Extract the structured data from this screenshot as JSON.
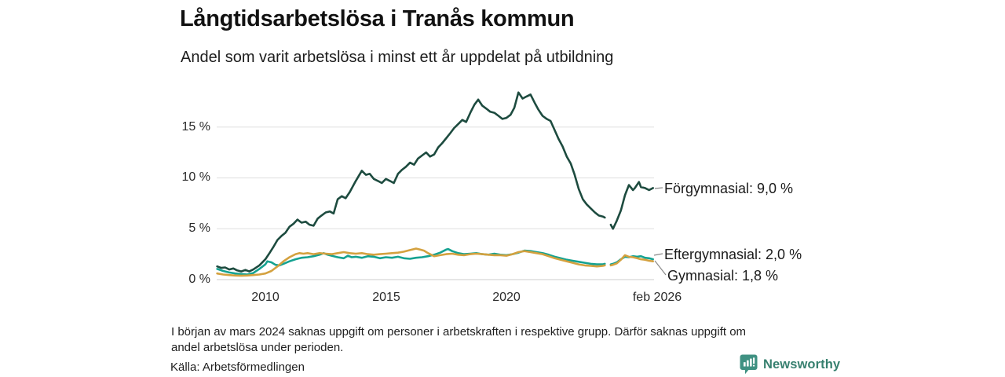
{
  "header": {
    "title": "Långtidsarbetslösa i Tranås kommun",
    "subtitle": "Andel som varit arbetslösa i minst ett år uppdelat på utbildning"
  },
  "chart_data": {
    "type": "line",
    "title": "Långtidsarbetslösa i Tranås kommun",
    "subtitle": "Andel som varit arbetslösa i minst ett år uppdelat på utbildning",
    "unit": "%",
    "x_range": [
      2008.0,
      2026.17
    ],
    "y_range": [
      0,
      18.6
    ],
    "grid": "horizontal",
    "legend_position": "end-of-line-labels",
    "y_ticks": [
      {
        "label": "15 %",
        "value": 15
      },
      {
        "label": "10 %",
        "value": 10
      },
      {
        "label": "5 %",
        "value": 5
      },
      {
        "label": "0 %",
        "value": 0
      }
    ],
    "x_ticks": [
      {
        "label": "2010",
        "year": 2010
      },
      {
        "label": "2015",
        "year": 2015
      },
      {
        "label": "2020",
        "year": 2020
      },
      {
        "label": "feb 2026",
        "year": 2026.08
      }
    ],
    "data_gap": "mars 2024",
    "series": [
      {
        "id": "forgymnasial",
        "name": "Förgymnasial",
        "end_label": "Förgymnasial: 9,0 %",
        "end_value": 9.0,
        "color": "#1d4b3f",
        "points": [
          [
            2008.0,
            1.3
          ],
          [
            2008.17,
            1.15
          ],
          [
            2008.33,
            1.2
          ],
          [
            2008.5,
            1.0
          ],
          [
            2008.67,
            1.1
          ],
          [
            2008.83,
            0.9
          ],
          [
            2009.0,
            0.8
          ],
          [
            2009.17,
            0.95
          ],
          [
            2009.33,
            0.8
          ],
          [
            2009.5,
            1.0
          ],
          [
            2009.75,
            1.4
          ],
          [
            2010.0,
            2.0
          ],
          [
            2010.17,
            2.6
          ],
          [
            2010.33,
            3.2
          ],
          [
            2010.5,
            3.9
          ],
          [
            2010.67,
            4.3
          ],
          [
            2010.83,
            4.6
          ],
          [
            2011.0,
            5.2
          ],
          [
            2011.17,
            5.5
          ],
          [
            2011.33,
            5.9
          ],
          [
            2011.5,
            5.6
          ],
          [
            2011.67,
            5.7
          ],
          [
            2011.83,
            5.4
          ],
          [
            2012.0,
            5.3
          ],
          [
            2012.17,
            6.0
          ],
          [
            2012.33,
            6.3
          ],
          [
            2012.5,
            6.6
          ],
          [
            2012.67,
            6.7
          ],
          [
            2012.83,
            6.5
          ],
          [
            2013.0,
            7.9
          ],
          [
            2013.17,
            8.2
          ],
          [
            2013.33,
            8.0
          ],
          [
            2013.5,
            8.6
          ],
          [
            2013.75,
            9.7
          ],
          [
            2014.0,
            10.7
          ],
          [
            2014.17,
            10.3
          ],
          [
            2014.33,
            10.4
          ],
          [
            2014.5,
            9.9
          ],
          [
            2014.67,
            9.7
          ],
          [
            2014.83,
            9.5
          ],
          [
            2015.0,
            9.9
          ],
          [
            2015.17,
            9.7
          ],
          [
            2015.33,
            9.5
          ],
          [
            2015.5,
            10.4
          ],
          [
            2015.67,
            10.8
          ],
          [
            2015.83,
            11.1
          ],
          [
            2016.0,
            11.5
          ],
          [
            2016.17,
            11.3
          ],
          [
            2016.33,
            11.9
          ],
          [
            2016.5,
            12.2
          ],
          [
            2016.67,
            12.5
          ],
          [
            2016.83,
            12.1
          ],
          [
            2017.0,
            12.3
          ],
          [
            2017.17,
            13.0
          ],
          [
            2017.33,
            13.4
          ],
          [
            2017.5,
            13.9
          ],
          [
            2017.67,
            14.4
          ],
          [
            2017.83,
            14.9
          ],
          [
            2018.0,
            15.3
          ],
          [
            2018.17,
            15.7
          ],
          [
            2018.33,
            15.5
          ],
          [
            2018.5,
            16.4
          ],
          [
            2018.67,
            17.2
          ],
          [
            2018.83,
            17.7
          ],
          [
            2019.0,
            17.1
          ],
          [
            2019.17,
            16.8
          ],
          [
            2019.33,
            16.5
          ],
          [
            2019.5,
            16.4
          ],
          [
            2019.67,
            16.1
          ],
          [
            2019.83,
            15.8
          ],
          [
            2020.0,
            15.9
          ],
          [
            2020.17,
            16.2
          ],
          [
            2020.33,
            16.9
          ],
          [
            2020.5,
            18.4
          ],
          [
            2020.67,
            17.8
          ],
          [
            2020.83,
            18.0
          ],
          [
            2021.0,
            18.2
          ],
          [
            2021.17,
            17.4
          ],
          [
            2021.33,
            16.7
          ],
          [
            2021.5,
            16.1
          ],
          [
            2021.67,
            15.8
          ],
          [
            2021.83,
            15.6
          ],
          [
            2022.0,
            14.7
          ],
          [
            2022.17,
            13.8
          ],
          [
            2022.33,
            13.1
          ],
          [
            2022.5,
            12.1
          ],
          [
            2022.67,
            11.4
          ],
          [
            2022.83,
            10.3
          ],
          [
            2023.0,
            8.9
          ],
          [
            2023.17,
            7.9
          ],
          [
            2023.33,
            7.4
          ],
          [
            2023.5,
            7.0
          ],
          [
            2023.67,
            6.6
          ],
          [
            2023.83,
            6.3
          ],
          [
            2024.0,
            6.2
          ],
          [
            2024.08,
            6.1
          ],
          [
            2024.17,
            null
          ],
          [
            2024.33,
            5.4
          ],
          [
            2024.42,
            5.0
          ],
          [
            2024.58,
            5.8
          ],
          [
            2024.75,
            6.8
          ],
          [
            2024.92,
            8.3
          ],
          [
            2025.0,
            8.8
          ],
          [
            2025.08,
            9.3
          ],
          [
            2025.25,
            8.8
          ],
          [
            2025.33,
            9.0
          ],
          [
            2025.5,
            9.6
          ],
          [
            2025.58,
            9.1
          ],
          [
            2025.75,
            9.0
          ],
          [
            2025.92,
            8.8
          ],
          [
            2026.08,
            9.0
          ]
        ]
      },
      {
        "id": "eftergymnasial",
        "name": "Eftergymnasial",
        "end_label": "Eftergymnasial: 2,0 %",
        "end_value": 2.0,
        "color": "#15a291",
        "points": [
          [
            2008.0,
            1.05
          ],
          [
            2008.25,
            0.85
          ],
          [
            2008.5,
            0.7
          ],
          [
            2008.75,
            0.6
          ],
          [
            2009.0,
            0.55
          ],
          [
            2009.25,
            0.5
          ],
          [
            2009.5,
            0.65
          ],
          [
            2009.75,
            1.05
          ],
          [
            2010.0,
            1.5
          ],
          [
            2010.08,
            1.8
          ],
          [
            2010.25,
            1.7
          ],
          [
            2010.42,
            1.45
          ],
          [
            2010.58,
            1.4
          ],
          [
            2010.75,
            1.55
          ],
          [
            2011.0,
            1.8
          ],
          [
            2011.25,
            2.0
          ],
          [
            2011.5,
            2.15
          ],
          [
            2011.75,
            2.2
          ],
          [
            2012.0,
            2.3
          ],
          [
            2012.25,
            2.45
          ],
          [
            2012.42,
            2.6
          ],
          [
            2012.58,
            2.45
          ],
          [
            2012.75,
            2.35
          ],
          [
            2013.0,
            2.2
          ],
          [
            2013.25,
            2.1
          ],
          [
            2013.42,
            2.35
          ],
          [
            2013.58,
            2.2
          ],
          [
            2013.75,
            2.25
          ],
          [
            2014.0,
            2.15
          ],
          [
            2014.25,
            2.3
          ],
          [
            2014.5,
            2.25
          ],
          [
            2014.75,
            2.1
          ],
          [
            2015.0,
            2.2
          ],
          [
            2015.25,
            2.15
          ],
          [
            2015.5,
            2.25
          ],
          [
            2015.75,
            2.1
          ],
          [
            2016.0,
            2.05
          ],
          [
            2016.25,
            2.15
          ],
          [
            2016.5,
            2.2
          ],
          [
            2016.75,
            2.3
          ],
          [
            2017.0,
            2.45
          ],
          [
            2017.25,
            2.65
          ],
          [
            2017.5,
            2.95
          ],
          [
            2017.58,
            3.0
          ],
          [
            2017.75,
            2.8
          ],
          [
            2018.0,
            2.6
          ],
          [
            2018.25,
            2.5
          ],
          [
            2018.5,
            2.55
          ],
          [
            2018.75,
            2.6
          ],
          [
            2019.0,
            2.5
          ],
          [
            2019.25,
            2.45
          ],
          [
            2019.5,
            2.55
          ],
          [
            2019.75,
            2.45
          ],
          [
            2020.0,
            2.4
          ],
          [
            2020.25,
            2.5
          ],
          [
            2020.5,
            2.65
          ],
          [
            2020.75,
            2.85
          ],
          [
            2021.0,
            2.8
          ],
          [
            2021.25,
            2.7
          ],
          [
            2021.5,
            2.6
          ],
          [
            2021.75,
            2.45
          ],
          [
            2022.0,
            2.25
          ],
          [
            2022.25,
            2.1
          ],
          [
            2022.5,
            1.95
          ],
          [
            2022.75,
            1.85
          ],
          [
            2023.0,
            1.75
          ],
          [
            2023.25,
            1.65
          ],
          [
            2023.5,
            1.55
          ],
          [
            2023.75,
            1.5
          ],
          [
            2024.0,
            1.5
          ],
          [
            2024.08,
            1.55
          ],
          [
            2024.17,
            null
          ],
          [
            2024.33,
            1.5
          ],
          [
            2024.42,
            1.55
          ],
          [
            2024.58,
            1.7
          ],
          [
            2024.75,
            2.0
          ],
          [
            2024.92,
            2.25
          ],
          [
            2025.08,
            2.2
          ],
          [
            2025.25,
            2.3
          ],
          [
            2025.42,
            2.25
          ],
          [
            2025.58,
            2.3
          ],
          [
            2025.75,
            2.15
          ],
          [
            2025.92,
            2.1
          ],
          [
            2026.08,
            2.0
          ]
        ]
      },
      {
        "id": "gymnasial",
        "name": "Gymnasial",
        "end_label": "Gymnasial: 1,8 %",
        "end_value": 1.8,
        "color": "#d4a13f",
        "points": [
          [
            2008.0,
            0.6
          ],
          [
            2008.25,
            0.5
          ],
          [
            2008.5,
            0.45
          ],
          [
            2008.75,
            0.4
          ],
          [
            2009.0,
            0.38
          ],
          [
            2009.25,
            0.4
          ],
          [
            2009.5,
            0.45
          ],
          [
            2009.75,
            0.5
          ],
          [
            2010.0,
            0.6
          ],
          [
            2010.25,
            0.85
          ],
          [
            2010.5,
            1.3
          ],
          [
            2010.75,
            1.8
          ],
          [
            2011.0,
            2.2
          ],
          [
            2011.25,
            2.5
          ],
          [
            2011.42,
            2.6
          ],
          [
            2011.58,
            2.55
          ],
          [
            2011.75,
            2.6
          ],
          [
            2012.0,
            2.5
          ],
          [
            2012.25,
            2.6
          ],
          [
            2012.5,
            2.55
          ],
          [
            2012.75,
            2.5
          ],
          [
            2013.0,
            2.6
          ],
          [
            2013.25,
            2.7
          ],
          [
            2013.5,
            2.6
          ],
          [
            2013.75,
            2.55
          ],
          [
            2014.0,
            2.6
          ],
          [
            2014.25,
            2.5
          ],
          [
            2014.5,
            2.45
          ],
          [
            2014.75,
            2.5
          ],
          [
            2015.0,
            2.55
          ],
          [
            2015.25,
            2.6
          ],
          [
            2015.5,
            2.65
          ],
          [
            2015.75,
            2.75
          ],
          [
            2016.0,
            2.9
          ],
          [
            2016.25,
            3.05
          ],
          [
            2016.42,
            2.95
          ],
          [
            2016.58,
            2.85
          ],
          [
            2016.75,
            2.6
          ],
          [
            2017.0,
            2.3
          ],
          [
            2017.25,
            2.4
          ],
          [
            2017.5,
            2.5
          ],
          [
            2017.75,
            2.55
          ],
          [
            2018.0,
            2.45
          ],
          [
            2018.25,
            2.4
          ],
          [
            2018.5,
            2.5
          ],
          [
            2018.75,
            2.55
          ],
          [
            2019.0,
            2.5
          ],
          [
            2019.25,
            2.45
          ],
          [
            2019.5,
            2.4
          ],
          [
            2019.75,
            2.4
          ],
          [
            2020.0,
            2.35
          ],
          [
            2020.25,
            2.5
          ],
          [
            2020.5,
            2.7
          ],
          [
            2020.75,
            2.8
          ],
          [
            2021.0,
            2.7
          ],
          [
            2021.25,
            2.6
          ],
          [
            2021.5,
            2.5
          ],
          [
            2021.75,
            2.3
          ],
          [
            2022.0,
            2.1
          ],
          [
            2022.25,
            1.95
          ],
          [
            2022.5,
            1.8
          ],
          [
            2022.75,
            1.65
          ],
          [
            2023.0,
            1.5
          ],
          [
            2023.25,
            1.4
          ],
          [
            2023.5,
            1.35
          ],
          [
            2023.75,
            1.3
          ],
          [
            2024.0,
            1.35
          ],
          [
            2024.08,
            1.4
          ],
          [
            2024.17,
            null
          ],
          [
            2024.33,
            1.4
          ],
          [
            2024.42,
            1.45
          ],
          [
            2024.58,
            1.6
          ],
          [
            2024.75,
            1.95
          ],
          [
            2024.92,
            2.4
          ],
          [
            2025.08,
            2.25
          ],
          [
            2025.25,
            2.2
          ],
          [
            2025.42,
            2.1
          ],
          [
            2025.58,
            2.0
          ],
          [
            2025.75,
            1.95
          ],
          [
            2025.92,
            1.85
          ],
          [
            2026.08,
            1.8
          ]
        ]
      }
    ]
  },
  "footnote": {
    "line1": "I början av mars 2024 saknas uppgift om personer i arbetskraften i respektive grupp. Därför saknas uppgift om",
    "line2": "andel arbetslösa under perioden."
  },
  "source": "Källa: Arbetsförmedlingen",
  "logo": {
    "name": "Newsworthy",
    "brand_color": "#3f9182",
    "text_color": "#37806f"
  }
}
